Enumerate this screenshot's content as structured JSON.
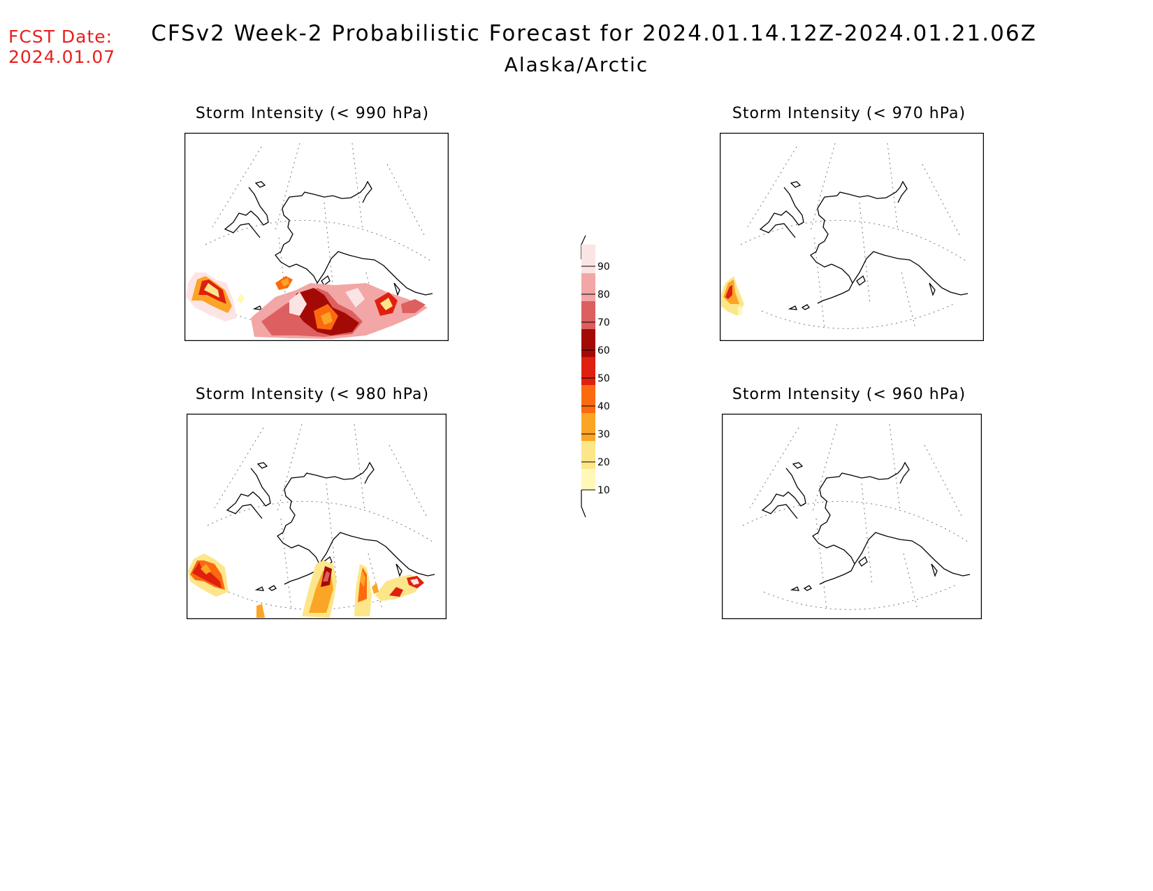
{
  "header": {
    "fcst_label": "FCST Date:",
    "fcst_date": "2024.01.07",
    "title": "CFSv2 Week-2 Probabilistic Forecast for 2024.01.14.12Z-2024.01.21.06Z",
    "subtitle": "Alaska/Arctic"
  },
  "panels": [
    {
      "title": "Storm Intensity (< 990 hPa)"
    },
    {
      "title": "Storm Intensity (< 970 hPa)"
    },
    {
      "title": "Storm Intensity (< 980 hPa)"
    },
    {
      "title": "Storm Intensity (< 960 hPa)"
    }
  ],
  "colorbar": {
    "levels": [
      "10",
      "20",
      "30",
      "40",
      "50",
      "60",
      "70",
      "80",
      "90"
    ],
    "colors": [
      "#fff8b8",
      "#fde68a",
      "#fba526",
      "#fb6a0f",
      "#e0200f",
      "#a40a05",
      "#dd5f5f",
      "#f2a6a6",
      "#fde4e4"
    ]
  }
}
